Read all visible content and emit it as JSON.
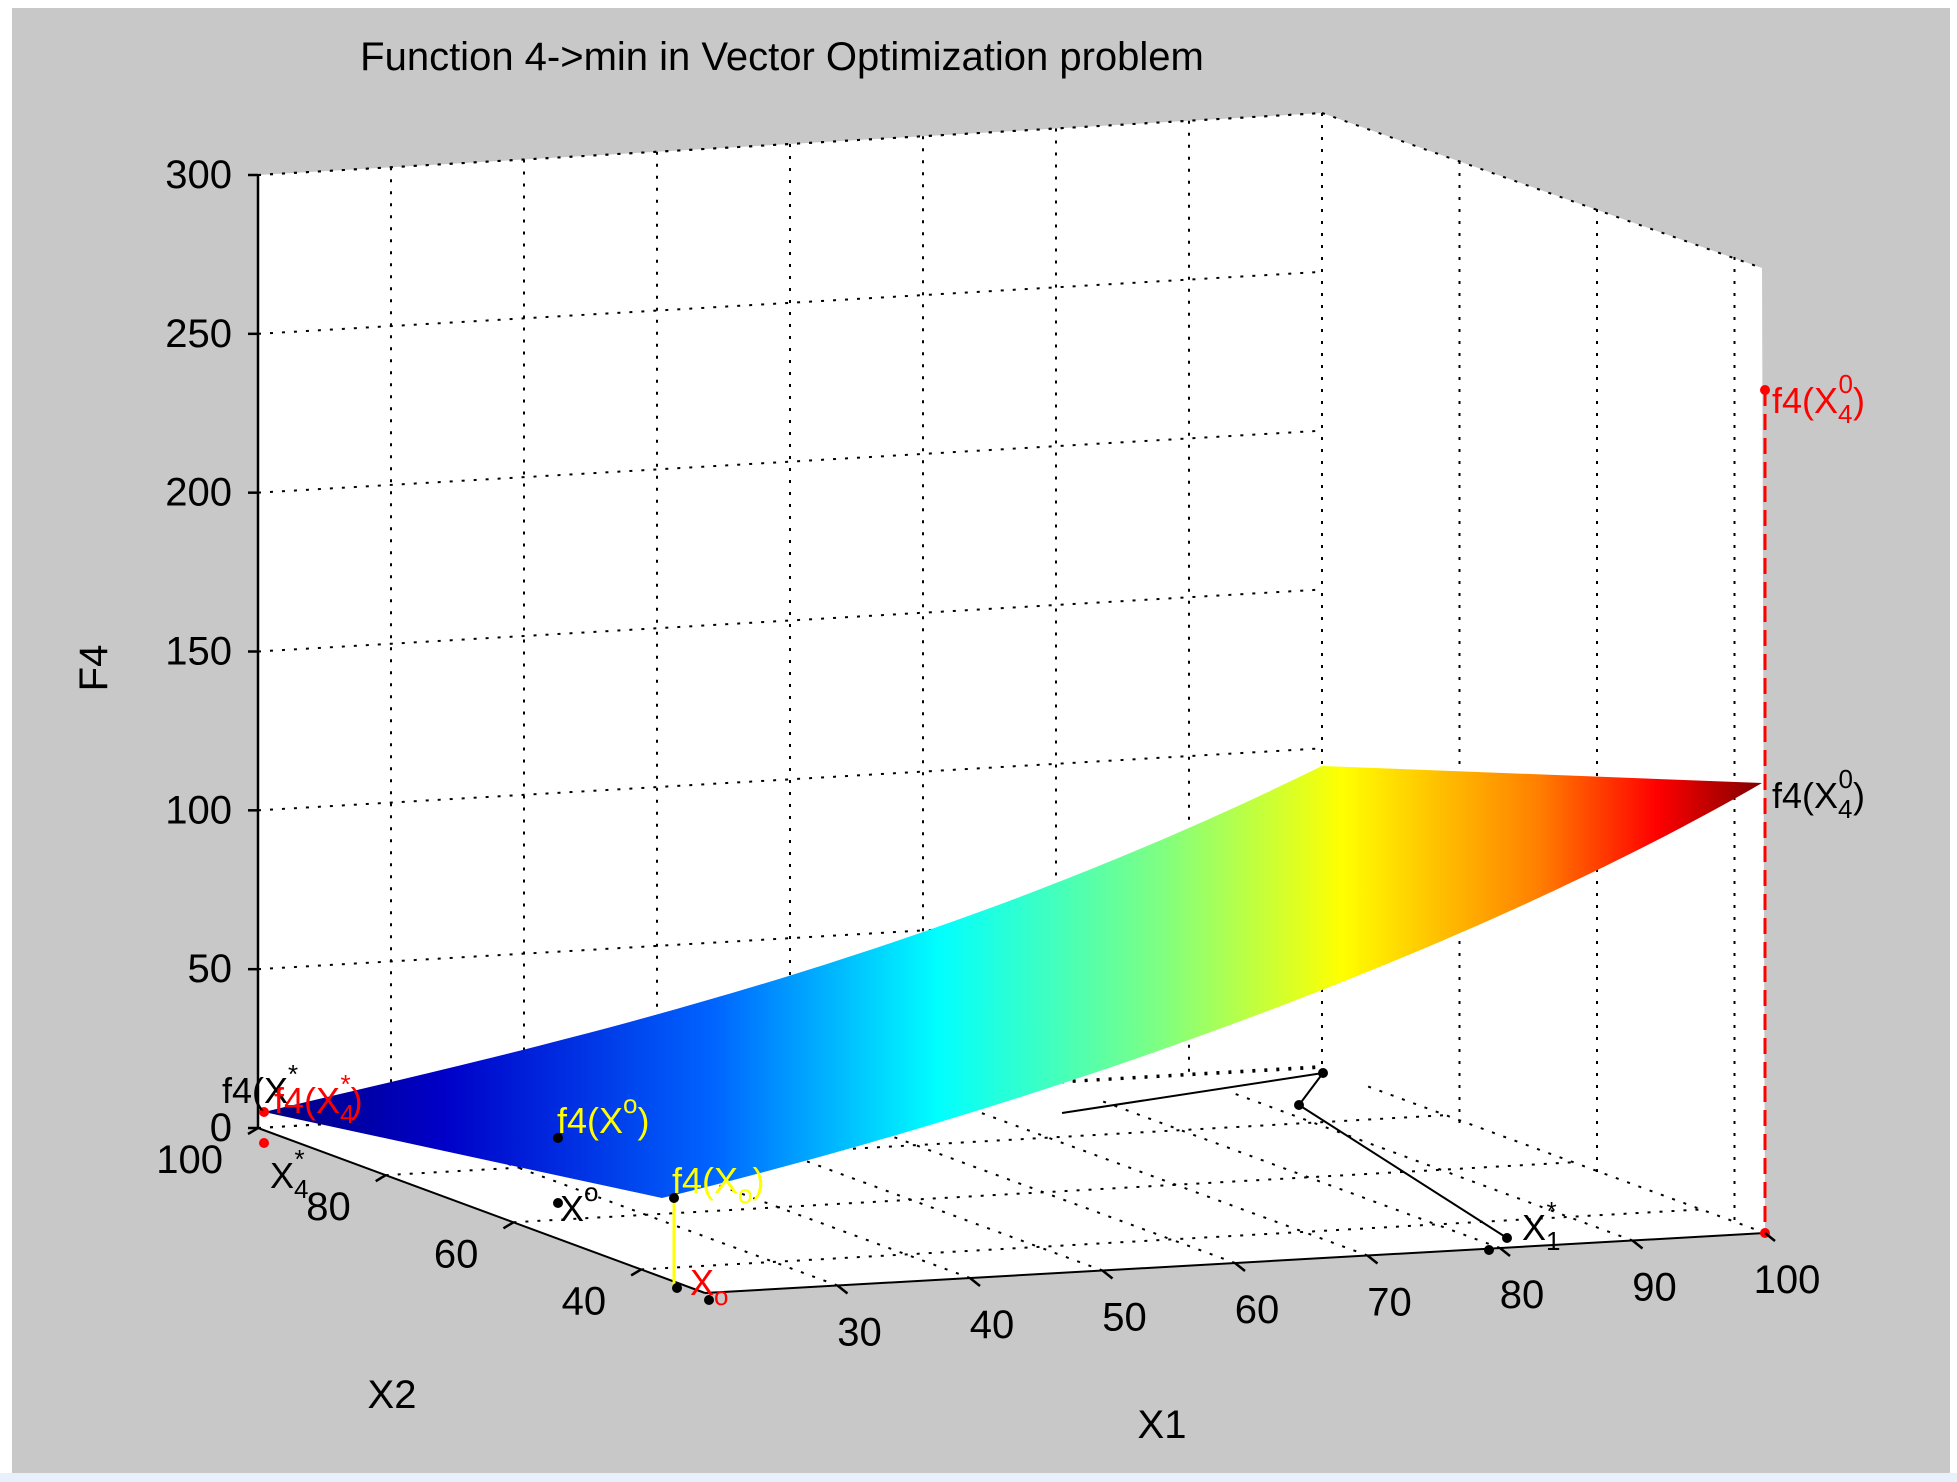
{
  "chart_data": {
    "type": "surface",
    "title": "Function 4->min in Vector Optimization problem",
    "xlabel": "X1",
    "ylabel": "X2",
    "zlabel": "F4",
    "x_ticks": [
      "30",
      "40",
      "50",
      "60",
      "70",
      "80",
      "90",
      "100"
    ],
    "y_ticks": [
      "40",
      "60",
      "80",
      "100"
    ],
    "z_ticks": [
      "0",
      "50",
      "100",
      "150",
      "200",
      "250",
      "300"
    ],
    "xlim": [
      20,
      100
    ],
    "ylim": [
      30,
      100
    ],
    "zlim": [
      0,
      300
    ],
    "grid": true,
    "colormap": "jet",
    "surface_z_range": [
      7,
      108
    ],
    "annotations": [
      {
        "text": "f4(X",
        "sub": "4",
        "sup": "0",
        "tail": ")",
        "color": "#ff0000"
      },
      {
        "text": "f4(X",
        "sub": "4",
        "sup": "0",
        "tail": ")",
        "color": "#000000"
      },
      {
        "text": "f4(X",
        "sub": "",
        "sup": "*",
        "tail": "",
        "color": "#000000"
      },
      {
        "text": "f4(X",
        "sub": "4",
        "sup": "*",
        "tail": ")",
        "color": "#ff0000"
      },
      {
        "text": "X",
        "sub": "4",
        "sup": "*",
        "tail": "",
        "color": "#000000"
      },
      {
        "text": "f4(X",
        "sub": "",
        "sup": "o",
        "tail": ")",
        "color": "#ffff00"
      },
      {
        "text": "X",
        "sub": "",
        "sup": "o",
        "tail": "",
        "color": "#000000"
      },
      {
        "text": "f4(X",
        "sub": "o",
        "sup": "",
        "tail": ")",
        "color": "#ffff00"
      },
      {
        "text": "X",
        "sub": "o",
        "sup": "",
        "tail": "",
        "color": "#ff0000"
      },
      {
        "text": "X",
        "sub": "1",
        "sup": "*",
        "tail": "",
        "color": "#000000"
      }
    ],
    "colors": {
      "background": "#c8c8c8",
      "axes_face": "#ffffff",
      "red_marker": "#ff0000",
      "yellow_marker": "#ffff00"
    }
  }
}
